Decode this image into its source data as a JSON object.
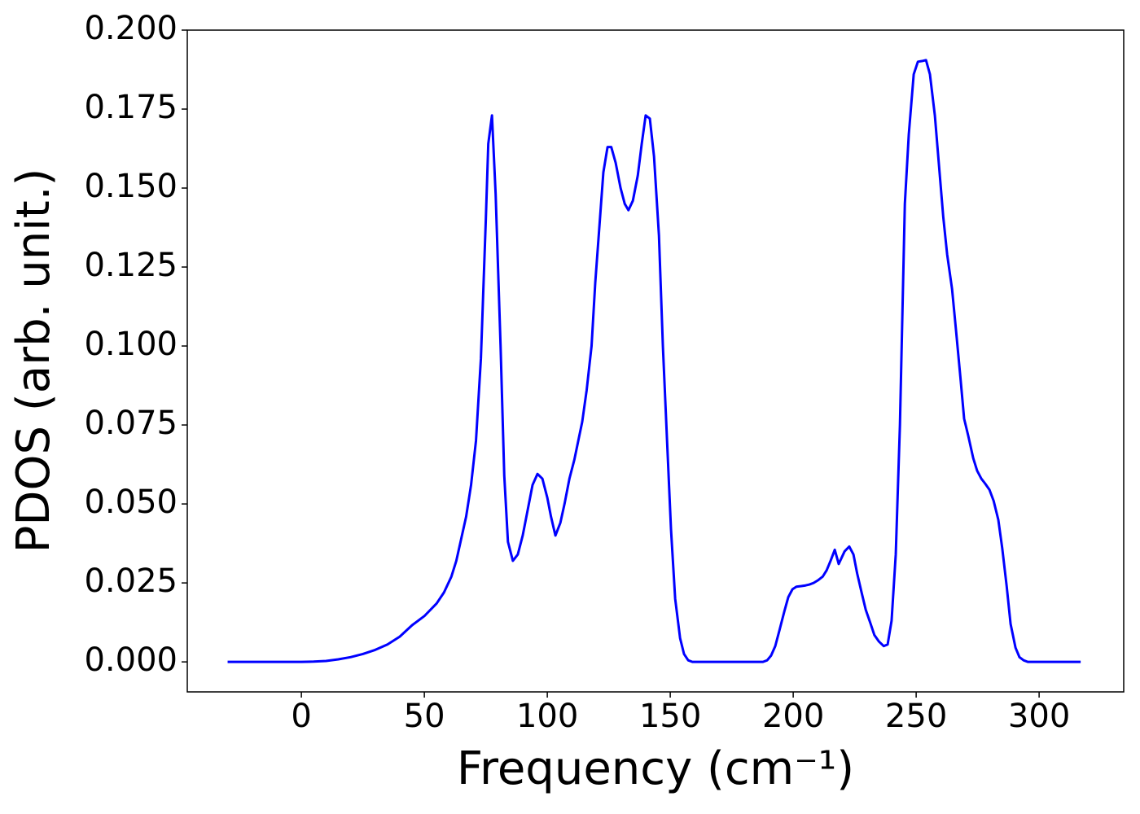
{
  "chart_data": {
    "type": "line",
    "xlabel": "Frequency (cm⁻¹)",
    "ylabel": "PDOS (arb. unit.)",
    "xlim": [
      -46.4,
      334.4
    ],
    "ylim": [
      -0.0095,
      0.2
    ],
    "xticks": [
      0,
      50,
      100,
      150,
      200,
      250,
      300
    ],
    "yticks": [
      {
        "value": 0,
        "label": "0.000"
      },
      0.025,
      {
        "value": 0.05,
        "label": "0.050"
      },
      0.075,
      {
        "value": 0.1,
        "label": "0.100"
      },
      0.125,
      {
        "value": 0.15,
        "label": "0.150"
      },
      0.175,
      {
        "value": 0.2,
        "label": "0.200"
      }
    ],
    "grid": false,
    "series": [
      {
        "name": "PDOS",
        "color": "#0000ff",
        "x": [
          -30,
          -10,
          0,
          5,
          10,
          15,
          20,
          25,
          30,
          35,
          40,
          45,
          50,
          55,
          58,
          61,
          63,
          65,
          67,
          69,
          71,
          73,
          75,
          76,
          77.5,
          79,
          81,
          82.5,
          84,
          86,
          88,
          90,
          92,
          94,
          96,
          98,
          100,
          101.5,
          103.3,
          105.3,
          107,
          109,
          111,
          112.6,
          114.2,
          116,
          118,
          119.5,
          121.2,
          122.8,
          124.5,
          126,
          127.8,
          129.8,
          131.5,
          133,
          134.8,
          136.8,
          138.4,
          140,
          141.7,
          143.4,
          145.4,
          147,
          148.7,
          150.3,
          152,
          154,
          155.6,
          157.3,
          159,
          187.7,
          189.4,
          191,
          192.7,
          194.4,
          196.4,
          198,
          199.7,
          201.3,
          203.3,
          205,
          206.6,
          208.3,
          210,
          212,
          213.6,
          215.2,
          216.9,
          218.5,
          220.9,
          222.8,
          224.5,
          226,
          227.8,
          229.5,
          231.5,
          233,
          234.8,
          236.8,
          238.4,
          240,
          241.7,
          243.4,
          245.4,
          247,
          249,
          250.7,
          252.3,
          254,
          255.6,
          257.6,
          259.3,
          261,
          262.6,
          264.6,
          266.2,
          268,
          269.5,
          271.2,
          273.2,
          274.8,
          276.5,
          278,
          279.8,
          281.5,
          283.4,
          285,
          286.8,
          288.4,
          290.4,
          292,
          293.7,
          295.4,
          316.9
        ],
        "values": [
          0,
          0,
          0,
          0.0001,
          0.0003,
          0.0008,
          0.0015,
          0.0025,
          0.0038,
          0.0055,
          0.008,
          0.0116,
          0.0145,
          0.0185,
          0.022,
          0.027,
          0.032,
          0.039,
          0.046,
          0.056,
          0.07,
          0.096,
          0.14,
          0.164,
          0.173,
          0.148,
          0.1,
          0.059,
          0.038,
          0.032,
          0.034,
          0.04,
          0.048,
          0.056,
          0.0595,
          0.058,
          0.052,
          0.046,
          0.04,
          0.044,
          0.05,
          0.058,
          0.064,
          0.07,
          0.076,
          0.086,
          0.1,
          0.12,
          0.138,
          0.155,
          0.163,
          0.163,
          0.158,
          0.15,
          0.145,
          0.143,
          0.146,
          0.154,
          0.164,
          0.173,
          0.172,
          0.16,
          0.135,
          0.1,
          0.07,
          0.042,
          0.02,
          0.0075,
          0.0025,
          0.0005,
          0,
          0,
          0.0005,
          0.002,
          0.005,
          0.01,
          0.016,
          0.0205,
          0.023,
          0.0238,
          0.024,
          0.0242,
          0.0245,
          0.025,
          0.0258,
          0.027,
          0.029,
          0.032,
          0.0355,
          0.031,
          0.035,
          0.0365,
          0.034,
          0.028,
          0.022,
          0.0165,
          0.012,
          0.0085,
          0.0065,
          0.005,
          0.0055,
          0.013,
          0.034,
          0.075,
          0.145,
          0.167,
          0.186,
          0.19,
          0.1902,
          0.1905,
          0.186,
          0.173,
          0.157,
          0.141,
          0.129,
          0.118,
          0.105,
          0.09,
          0.077,
          0.0715,
          0.0645,
          0.0605,
          0.058,
          0.0565,
          0.0545,
          0.051,
          0.045,
          0.036,
          0.024,
          0.012,
          0.0045,
          0.0015,
          0.0005,
          0,
          0
        ]
      }
    ]
  }
}
